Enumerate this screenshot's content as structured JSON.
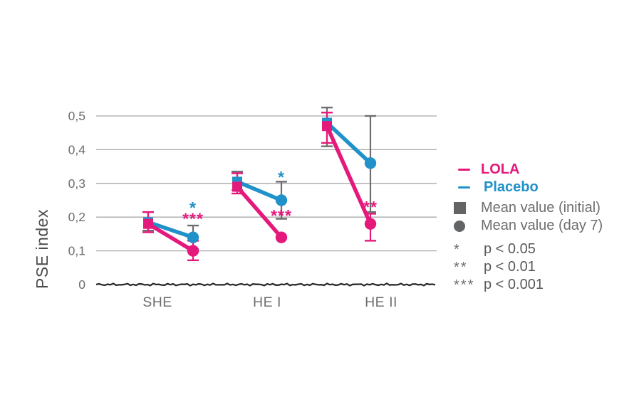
{
  "figure": {
    "ylabel": "PSE index"
  },
  "legend": {
    "items": [
      {
        "type": "dash",
        "label": "LOLA",
        "color": "#e5187c"
      },
      {
        "type": "dash",
        "label": "Placebo",
        "color": "#2191c9"
      },
      {
        "type": "square",
        "label": "Mean value (initial)",
        "color": "#636466"
      },
      {
        "type": "circle",
        "label": "Mean value (day 7)",
        "color": "#636466"
      },
      {
        "type": "asterisk",
        "symbol": "*",
        "label": "p < 0.05"
      },
      {
        "type": "asterisk",
        "symbol": "**",
        "label": "p < 0.01"
      },
      {
        "type": "asterisk",
        "symbol": "***",
        "label": "p < 0.001"
      }
    ]
  },
  "chart_data": {
    "type": "line",
    "title": "",
    "ylabel": "PSE index",
    "xlabel": "",
    "categories": [
      "SHE",
      "HE I",
      "HE II"
    ],
    "timepoints": [
      "initial",
      "day 7"
    ],
    "ylim": [
      0,
      0.55
    ],
    "yticks": [
      0,
      0.1,
      0.2,
      0.3,
      0.4,
      0.5
    ],
    "ytick_labels": [
      "0",
      "0,1",
      "0,2",
      "0,3",
      "0,4",
      "0,5"
    ],
    "grid": true,
    "legend_position": "right",
    "series": [
      {
        "name": "Placebo",
        "color": "#2191c9",
        "error_color": "#6d6e70",
        "marker_initial": "square",
        "marker_day7": "circle",
        "values": {
          "initial": [
            0.185,
            0.305,
            0.48
          ],
          "day7": [
            0.14,
            0.25,
            0.36
          ]
        },
        "error_bars": {
          "initial": [
            [
              0.16,
              0.215
            ],
            [
              0.28,
              0.335
            ],
            [
              0.41,
              0.525
            ]
          ],
          "day7": [
            [
              0.105,
              0.175
            ],
            [
              0.195,
              0.305
            ],
            [
              0.215,
              0.5
            ]
          ]
        }
      },
      {
        "name": "LOLA",
        "color": "#e5187c",
        "error_color": "#e5187c",
        "marker_initial": "square",
        "marker_day7": "circle",
        "values": {
          "initial": [
            0.18,
            0.29,
            0.47
          ],
          "day7": [
            0.1,
            0.14,
            0.18
          ]
        },
        "error_bars": {
          "initial": [
            [
              0.155,
              0.215
            ],
            [
              0.27,
              0.33
            ],
            [
              0.42,
              0.51
            ]
          ],
          "day7": [
            [
              0.072,
              0.13
            ],
            null,
            [
              0.13,
              0.21
            ]
          ]
        }
      }
    ],
    "significance": [
      {
        "category": "SHE",
        "series": "Placebo",
        "symbol": "*",
        "y": 0.228
      },
      {
        "category": "SHE",
        "series": "LOLA",
        "symbol": "***",
        "y": 0.195
      },
      {
        "category": "HE I",
        "series": "Placebo",
        "symbol": "*",
        "y": 0.319
      },
      {
        "category": "HE I",
        "series": "LOLA",
        "symbol": "***",
        "y": 0.205
      },
      {
        "category": "HE II",
        "series": "LOLA",
        "symbol": "**",
        "y": 0.23
      }
    ]
  }
}
